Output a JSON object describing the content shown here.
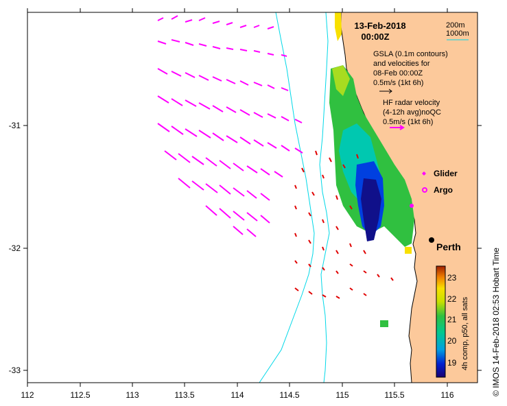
{
  "map": {
    "title_date": "13-Feb-2018",
    "title_time": "00:00Z",
    "x_ticks": [
      "112",
      "112.5",
      "113",
      "113.5",
      "114",
      "114.5",
      "115",
      "115.5",
      "116"
    ],
    "y_ticks": [
      "-31",
      "-32",
      "-33"
    ],
    "legend": {
      "contour_200": "200m",
      "contour_1000": "1000m",
      "gsla_line1": "GSLA (0.1m contours)",
      "gsla_line2": "and velocities for",
      "gsla_line3": "08-Feb 00:00Z",
      "gsla_line4": "0.5m/s (1kt 6h)",
      "hf_line1": "HF radar velocity",
      "hf_line2": "(4-12h avg)noQC",
      "hf_line3": "0.5m/s (1kt 6h)",
      "glider": "Glider",
      "argo": "Argo",
      "city": "Perth"
    },
    "colorbar": {
      "ticks": [
        "23",
        "22",
        "21",
        "20",
        "19"
      ],
      "label": "4h comp, p50, all sats"
    },
    "credit": "© IMOS 14-Feb-2018 02:53 Hobart Time",
    "colors": {
      "land": "#fcc99b",
      "hf_vectors": "#ff00ff",
      "gsla_vectors": "#e00000",
      "contours": "#00d8e8"
    }
  }
}
